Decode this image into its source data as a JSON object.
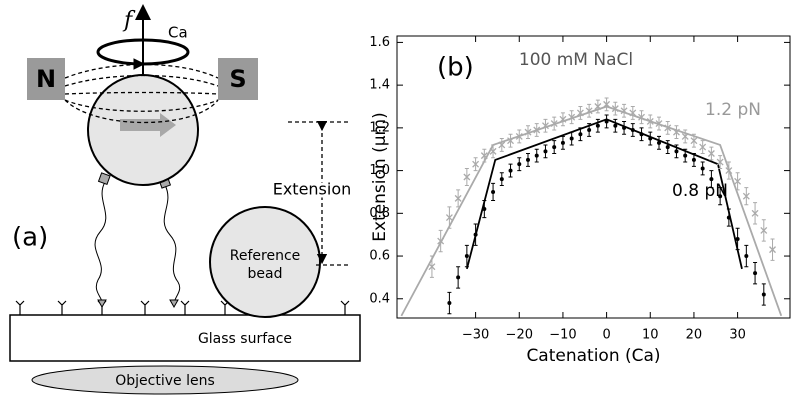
{
  "panel_a": {
    "force": "f",
    "rotation": "Ca",
    "north": "N",
    "south": "S",
    "extension": "Extension",
    "panel_label": "(a)",
    "reference_bead": [
      "Reference",
      "bead"
    ],
    "surface": "Glass surface",
    "lens": "Objective lens"
  },
  "chart_data": {
    "type": "scatter",
    "panel_label": "(b)",
    "annotation": "100 mM NaCl",
    "x_label": "Catenation (Ca)",
    "y_label": "Extension (μm)",
    "xlim": [
      -48,
      42
    ],
    "ylim": [
      0.31,
      1.63
    ],
    "xticks": [
      {
        "value": -30,
        "label": "−30"
      },
      {
        "value": -20,
        "label": "−20"
      },
      {
        "value": -10,
        "label": "−10"
      },
      0,
      10,
      20,
      30
    ],
    "yticks": [
      0.4,
      0.6,
      0.8,
      {
        "value": 1,
        "label": "1.0"
      },
      1.2,
      1.4,
      1.6
    ],
    "grid": false,
    "series": [
      {
        "name": "1.2 pN",
        "color": "#aaaaaa",
        "marker": "x",
        "x": [
          -40,
          -38,
          -36,
          -34,
          -32,
          -30,
          -28,
          -26,
          -24,
          -22,
          -20,
          -18,
          -16,
          -14,
          -12,
          -10,
          -8,
          -6,
          -4,
          -2,
          0,
          2,
          4,
          6,
          8,
          10,
          12,
          14,
          16,
          18,
          20,
          22,
          24,
          26,
          28,
          30,
          32,
          34,
          36,
          38
        ],
        "values": [
          0.55,
          0.67,
          0.78,
          0.87,
          0.97,
          1.03,
          1.07,
          1.09,
          1.12,
          1.14,
          1.16,
          1.18,
          1.19,
          1.21,
          1.22,
          1.24,
          1.25,
          1.27,
          1.28,
          1.3,
          1.31,
          1.29,
          1.28,
          1.27,
          1.25,
          1.23,
          1.22,
          1.2,
          1.18,
          1.16,
          1.14,
          1.11,
          1.08,
          1.04,
          1.0,
          0.95,
          0.88,
          0.8,
          0.72,
          0.63
        ],
        "errors": [
          0.05,
          0.05,
          0.05,
          0.04,
          0.04,
          0.03,
          0.03,
          0.03,
          0.03,
          0.03,
          0.03,
          0.03,
          0.03,
          0.03,
          0.03,
          0.03,
          0.03,
          0.03,
          0.03,
          0.03,
          0.03,
          0.03,
          0.03,
          0.03,
          0.03,
          0.03,
          0.03,
          0.03,
          0.03,
          0.03,
          0.03,
          0.03,
          0.03,
          0.03,
          0.04,
          0.04,
          0.04,
          0.05,
          0.05,
          0.05
        ]
      },
      {
        "name": "0.8 pN",
        "color": "#000000",
        "marker": "dot",
        "x": [
          -36,
          -34,
          -32,
          -30,
          -28,
          -26,
          -24,
          -22,
          -20,
          -18,
          -16,
          -14,
          -12,
          -10,
          -8,
          -6,
          -4,
          -2,
          0,
          2,
          4,
          6,
          8,
          10,
          12,
          14,
          16,
          18,
          20,
          22,
          24,
          26,
          28,
          30,
          32,
          34,
          36
        ],
        "values": [
          0.38,
          0.5,
          0.6,
          0.7,
          0.82,
          0.9,
          0.96,
          1.0,
          1.03,
          1.05,
          1.07,
          1.09,
          1.11,
          1.13,
          1.15,
          1.17,
          1.19,
          1.21,
          1.23,
          1.21,
          1.2,
          1.19,
          1.17,
          1.15,
          1.13,
          1.11,
          1.09,
          1.07,
          1.05,
          1.01,
          0.96,
          0.88,
          0.78,
          0.68,
          0.6,
          0.52,
          0.42
        ],
        "errors": [
          0.05,
          0.05,
          0.05,
          0.05,
          0.04,
          0.04,
          0.03,
          0.03,
          0.03,
          0.03,
          0.03,
          0.03,
          0.03,
          0.03,
          0.03,
          0.03,
          0.03,
          0.03,
          0.03,
          0.03,
          0.03,
          0.03,
          0.03,
          0.03,
          0.03,
          0.03,
          0.03,
          0.03,
          0.03,
          0.03,
          0.04,
          0.04,
          0.04,
          0.05,
          0.05,
          0.05,
          0.05
        ]
      }
    ],
    "curves": [
      {
        "color": "#aaaaaa",
        "x": [
          -47,
          -26,
          0,
          26,
          40
        ],
        "values": [
          0.32,
          1.12,
          1.3,
          1.12,
          0.32
        ]
      },
      {
        "color": "#000000",
        "x": [
          -32,
          -25.5,
          0,
          25.5,
          31
        ],
        "values": [
          0.54,
          1.05,
          1.24,
          1.03,
          0.54
        ]
      }
    ]
  }
}
